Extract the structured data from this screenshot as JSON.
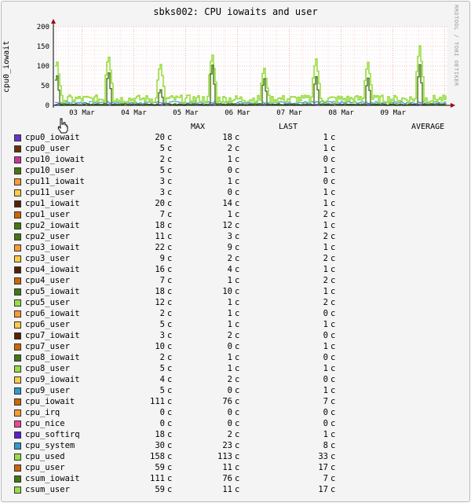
{
  "chart_data": {
    "type": "line",
    "title": "sbks002: CPU iowaits and user",
    "ylabel": "cpu0_iowait",
    "ylim": [
      0,
      200
    ],
    "yticks": [
      0,
      50,
      100,
      150,
      200
    ],
    "xticks": [
      "03 Mar",
      "04 Mar",
      "05 Mar",
      "06 Mar",
      "07 Mar",
      "08 Mar",
      "09 Mar"
    ],
    "grid": true,
    "series_peaks": {
      "cpu_used": [
        {
          "x": "02 Mar 12:00",
          "y": 120
        },
        {
          "x": "03 Mar 12:00",
          "y": 133
        },
        {
          "x": "04 Mar 12:00",
          "y": 112
        },
        {
          "x": "05 Mar 12:00",
          "y": 137
        },
        {
          "x": "06 Mar 12:00",
          "y": 100
        },
        {
          "x": "07 Mar 12:00",
          "y": 125
        },
        {
          "x": "08 Mar 12:00",
          "y": 115
        },
        {
          "x": "09 Mar 12:00",
          "y": 158
        }
      ],
      "cpu_iowait": [
        {
          "x": "02 Mar 12:00",
          "y": 88
        },
        {
          "x": "03 Mar 12:00",
          "y": 95
        },
        {
          "x": "04 Mar 12:00",
          "y": 45
        },
        {
          "x": "05 Mar 12:00",
          "y": 115
        },
        {
          "x": "06 Mar 12:00",
          "y": 75
        },
        {
          "x": "07 Mar 12:00",
          "y": 80
        },
        {
          "x": "08 Mar 12:00",
          "y": 75
        },
        {
          "x": "09 Mar 12:00",
          "y": 111
        }
      ]
    },
    "legend_headers": {
      "max": "MAX",
      "last": "LAST",
      "average": "AVERAGE"
    },
    "unit": "c",
    "legend": [
      {
        "name": "cpu0_iowait",
        "color": "#6633cc",
        "max": "20",
        "last": "18",
        "average": "1"
      },
      {
        "name": "cpu0_user",
        "color": "#663300",
        "max": "5",
        "last": "2",
        "average": "1"
      },
      {
        "name": "cpu10_iowait",
        "color": "#cc3399",
        "max": "2",
        "last": "1",
        "average": "0"
      },
      {
        "name": "cpu10_user",
        "color": "#447711",
        "max": "5",
        "last": "0",
        "average": "1"
      },
      {
        "name": "cpu11_iowait",
        "color": "#ff9933",
        "max": "3",
        "last": "1",
        "average": "0"
      },
      {
        "name": "cpu11_user",
        "color": "#ffcc44",
        "max": "3",
        "last": "0",
        "average": "1"
      },
      {
        "name": "cpu1_iowait",
        "color": "#552200",
        "max": "20",
        "last": "14",
        "average": "1"
      },
      {
        "name": "cpu1_user",
        "color": "#cc6600",
        "max": "7",
        "last": "1",
        "average": "2"
      },
      {
        "name": "cpu2_iowait",
        "color": "#447711",
        "max": "18",
        "last": "12",
        "average": "1"
      },
      {
        "name": "cpu2_user",
        "color": "#447711",
        "max": "11",
        "last": "3",
        "average": "2"
      },
      {
        "name": "cpu3_iowait",
        "color": "#ff9933",
        "max": "22",
        "last": "9",
        "average": "1"
      },
      {
        "name": "cpu3_user",
        "color": "#ffcc44",
        "max": "9",
        "last": "2",
        "average": "2"
      },
      {
        "name": "cpu4_iowait",
        "color": "#552200",
        "max": "16",
        "last": "4",
        "average": "1"
      },
      {
        "name": "cpu4_user",
        "color": "#cc6600",
        "max": "7",
        "last": "1",
        "average": "2"
      },
      {
        "name": "cpu5_iowait",
        "color": "#447711",
        "max": "18",
        "last": "10",
        "average": "1"
      },
      {
        "name": "cpu5_user",
        "color": "#99dd44",
        "max": "12",
        "last": "1",
        "average": "2"
      },
      {
        "name": "cpu6_iowait",
        "color": "#ff9933",
        "max": "2",
        "last": "1",
        "average": "0"
      },
      {
        "name": "cpu6_user",
        "color": "#ffcc44",
        "max": "5",
        "last": "1",
        "average": "1"
      },
      {
        "name": "cpu7_iowait",
        "color": "#552200",
        "max": "3",
        "last": "2",
        "average": "0"
      },
      {
        "name": "cpu7_user",
        "color": "#cc6600",
        "max": "10",
        "last": "0",
        "average": "1"
      },
      {
        "name": "cpu8_iowait",
        "color": "#447711",
        "max": "2",
        "last": "1",
        "average": "0"
      },
      {
        "name": "cpu8_user",
        "color": "#99dd44",
        "max": "5",
        "last": "1",
        "average": "1"
      },
      {
        "name": "cpu9_iowait",
        "color": "#ffcc44",
        "max": "4",
        "last": "2",
        "average": "0"
      },
      {
        "name": "cpu9_user",
        "color": "#3399cc",
        "max": "5",
        "last": "0",
        "average": "1"
      },
      {
        "name": "cpu_iowait",
        "color": "#cc6600",
        "max": "111",
        "last": "76",
        "average": "7"
      },
      {
        "name": "cpu_irq",
        "color": "#ff9933",
        "max": "0",
        "last": "0",
        "average": "0"
      },
      {
        "name": "cpu_nice",
        "color": "#ee4499",
        "max": "0",
        "last": "0",
        "average": "0"
      },
      {
        "name": "cpu_softirq",
        "color": "#5522cc",
        "max": "18",
        "last": "2",
        "average": "1"
      },
      {
        "name": "cpu_system",
        "color": "#3399cc",
        "max": "30",
        "last": "23",
        "average": "8"
      },
      {
        "name": "cpu_used",
        "color": "#99dd44",
        "max": "158",
        "last": "113",
        "average": "33"
      },
      {
        "name": "cpu_user",
        "color": "#cc6600",
        "max": "59",
        "last": "11",
        "average": "17"
      },
      {
        "name": "csum_iowait",
        "color": "#447711",
        "max": "111",
        "last": "76",
        "average": "7"
      },
      {
        "name": "csum_user",
        "color": "#99dd44",
        "max": "59",
        "last": "11",
        "average": "17"
      }
    ]
  },
  "watermark": "RRDTOOL / TOBI OETIKER",
  "colors": {
    "cpu_used": "#99dd44",
    "csum_iowait": "#447711",
    "cpu_system": "#3399cc",
    "softirq": "#5522cc",
    "grid": "#e6a0a0",
    "axis": "#000000",
    "arrow": "#a00000"
  }
}
